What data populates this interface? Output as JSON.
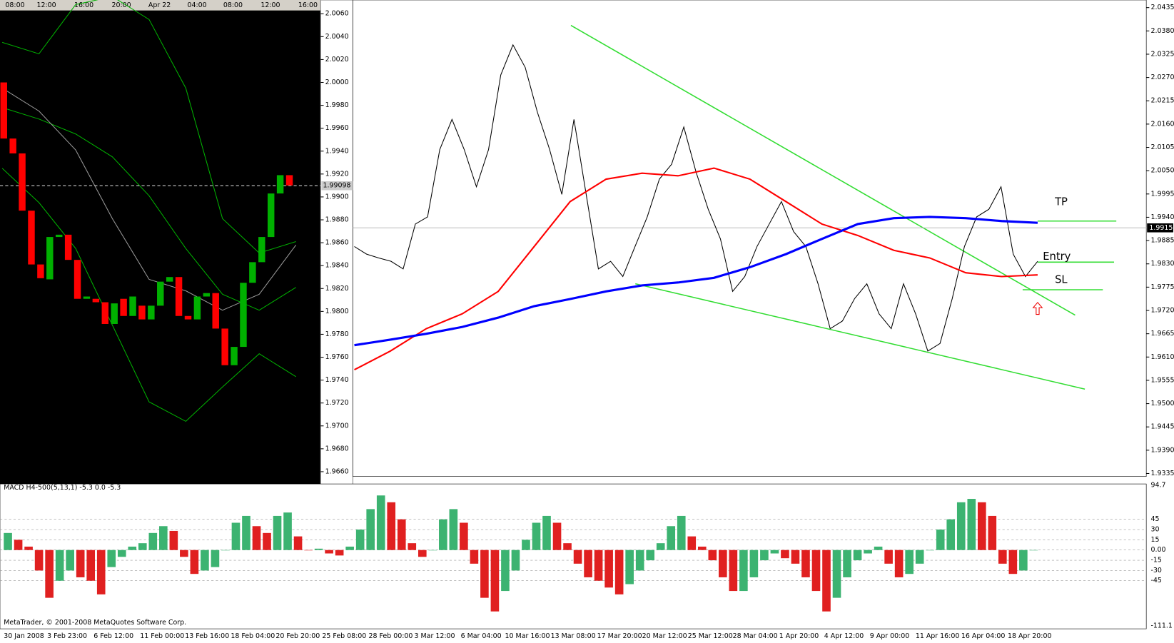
{
  "chart_data": [
    {
      "type": "candlestick",
      "time_labels": [
        "08:00",
        "12:00",
        "16:00",
        "20:00",
        "Apr 22",
        "04:00",
        "08:00",
        "12:00",
        "16:00"
      ],
      "open": [
        2.0,
        1.9951,
        1.9938,
        1.9888,
        1.9841,
        1.9828,
        1.9865,
        1.9867,
        1.9845,
        1.9811,
        1.9811,
        1.9808,
        1.9789,
        1.9811,
        1.9796,
        1.9805,
        1.9793,
        1.9805,
        1.9826,
        1.983,
        1.9796,
        1.9793,
        1.9813,
        1.9816,
        1.9785,
        1.9753,
        1.9769,
        1.9825,
        1.9843,
        1.9865,
        1.9903,
        1.9919
      ],
      "close": [
        1.9951,
        1.9938,
        1.9888,
        1.9841,
        1.9829,
        1.9865,
        1.9867,
        1.9845,
        1.9811,
        1.9813,
        1.9808,
        1.9789,
        1.9807,
        1.9796,
        1.9813,
        1.9793,
        1.9805,
        1.9826,
        1.983,
        1.9796,
        1.9793,
        1.9813,
        1.9816,
        1.9785,
        1.9753,
        1.9769,
        1.9825,
        1.9843,
        1.9865,
        1.9903,
        1.9919,
        1.991
      ],
      "up_color": "#00b000",
      "down_color": "#ff0000",
      "series": [
        {
          "color": "#00b000",
          "values": [
            2.0035,
            2.0025,
            2.0068,
            2.0075,
            2.0055,
            1.9995,
            1.9881,
            1.9851,
            1.9861
          ]
        },
        {
          "color": "#00b000",
          "values": [
            1.9978,
            1.9968,
            1.9955,
            1.9935,
            1.9901,
            1.9855,
            1.9815,
            1.9801,
            1.9821
          ]
        },
        {
          "color": "#00b000",
          "values": [
            1.9925,
            1.9895,
            1.9855,
            1.9788,
            1.9721,
            1.9704,
            1.9734,
            1.9763,
            1.9743
          ]
        },
        {
          "color": "#999999",
          "values": [
            1.9995,
            1.9975,
            1.9941,
            1.9881,
            1.9828,
            1.9818,
            1.9801,
            1.9815,
            1.9858
          ]
        }
      ],
      "current_price": {
        "value": 1.99098,
        "label": "1.99098"
      },
      "ylim": [
        1.9648,
        2.0072
      ],
      "yticks": [
        {
          "value": 2.006,
          "label": "2.0060"
        },
        {
          "value": 2.004,
          "label": "2.0040"
        },
        {
          "value": 2.002,
          "label": "2.0020"
        },
        {
          "value": 2.0,
          "label": "2.0000"
        },
        {
          "value": 1.998,
          "label": "1.9980"
        },
        {
          "value": 1.996,
          "label": "1.9960"
        },
        {
          "value": 1.994,
          "label": "1.9940"
        },
        {
          "value": 1.992,
          "label": "1.9920"
        },
        {
          "value": 1.99,
          "label": "1.9900"
        },
        {
          "value": 1.988,
          "label": "1.9880"
        },
        {
          "value": 1.986,
          "label": "1.9860"
        },
        {
          "value": 1.984,
          "label": "1.9840"
        },
        {
          "value": 1.982,
          "label": "1.9820"
        },
        {
          "value": 1.98,
          "label": "1.9800"
        },
        {
          "value": 1.978,
          "label": "1.9780"
        },
        {
          "value": 1.976,
          "label": "1.9760"
        },
        {
          "value": 1.974,
          "label": "1.9740"
        },
        {
          "value": 1.972,
          "label": "1.9720"
        },
        {
          "value": 1.97,
          "label": "1.9700"
        },
        {
          "value": 1.968,
          "label": "1.9680"
        },
        {
          "value": 1.966,
          "label": "1.9660"
        }
      ]
    },
    {
      "type": "line",
      "annotations": [
        "TP",
        "Entry",
        "SL"
      ],
      "date_labels": [
        "30 Jan 2008",
        "3 Feb 23:00",
        "6 Feb 12:00",
        "11 Feb 00:00",
        "13 Feb 16:00",
        "18 Feb 04:00",
        "20 Feb 20:00",
        "25 Feb 08:00",
        "28 Feb 00:00",
        "3 Mar 12:00",
        "6 Mar 04:00",
        "10 Mar 16:00",
        "13 Mar 08:00",
        "17 Mar 20:00",
        "20 Mar 12:00",
        "25 Mar 12:00",
        "28 Mar 04:00",
        "1 Apr 20:00",
        "4 Apr 12:00",
        "9 Apr 00:00",
        "11 Apr 16:00",
        "16 Apr 04:00",
        "18 Apr 20:00"
      ],
      "series": [
        {
          "color": "#000000",
          "values": [
            1.9871,
            1.9853,
            1.9844,
            1.9836,
            1.9818,
            1.9924,
            1.9941,
            2.01,
            2.0171,
            2.01,
            2.0012,
            2.01,
            2.0276,
            2.0347,
            2.0294,
            2.0188,
            2.01,
            1.9994,
            2.0171,
            1.9994,
            1.9818,
            1.9836,
            1.98,
            1.9871,
            1.9941,
            2.003,
            2.0065,
            2.0153,
            2.0047,
            1.9959,
            1.9889,
            1.9765,
            1.98,
            1.9871,
            1.9924,
            1.9977,
            1.9906,
            1.9871,
            1.9783,
            1.9677,
            1.9695,
            1.9748,
            1.9783,
            1.9712,
            1.9677,
            1.9783,
            1.9712,
            1.9624,
            1.9642,
            1.9748,
            1.9871,
            1.9941,
            1.9959,
            2.0012,
            1.9853,
            1.98,
            1.9836
          ]
        },
        {
          "color": "#ff0000",
          "values": [
            1.958,
            1.9624,
            1.9677,
            1.9712,
            1.9765,
            1.9871,
            1.9977,
            2.003,
            2.0044,
            2.0038,
            2.0056,
            2.003,
            1.9977,
            1.9924,
            1.9897,
            1.9862,
            1.9844,
            1.9809,
            1.98,
            1.9804
          ]
        },
        {
          "color": "#0000ff",
          "values": [
            1.9638,
            1.9651,
            1.9665,
            1.9681,
            1.9703,
            1.973,
            1.9747,
            1.9765,
            1.9779,
            1.9786,
            1.9797,
            1.9822,
            1.9853,
            1.9889,
            1.9924,
            1.9938,
            1.9941,
            1.9938,
            1.9931,
            1.9927
          ]
        }
      ],
      "current_price": {
        "value": 1.9915,
        "label": "1.9915"
      },
      "ylim": [
        1.9328,
        2.0453
      ],
      "yticks": [
        {
          "value": 2.0435,
          "label": "2.0435"
        },
        {
          "value": 2.038,
          "label": "2.0380"
        },
        {
          "value": 2.0325,
          "label": "2.0325"
        },
        {
          "value": 2.027,
          "label": "2.0270"
        },
        {
          "value": 2.0215,
          "label": "2.0215"
        },
        {
          "value": 2.016,
          "label": "2.0160"
        },
        {
          "value": 2.0105,
          "label": "2.0105"
        },
        {
          "value": 2.005,
          "label": "2.0050"
        },
        1.9995,
        {
          "value": 1.994,
          "label": "1.9940"
        },
        1.9885,
        {
          "value": 1.983,
          "label": "1.9830"
        },
        1.9775,
        {
          "value": 1.972,
          "label": "1.9720"
        },
        1.9665,
        {
          "value": 1.961,
          "label": "1.9610"
        },
        1.9555,
        {
          "value": 1.95,
          "label": "1.9500"
        },
        1.9445,
        {
          "value": 1.939,
          "label": "1.9390"
        },
        1.9335
      ]
    },
    {
      "type": "bar",
      "title": "MACD H4-500(5,13,1) -5.3 0.0 -5.3",
      "footer": "MetaTrader, © 2001-2008 MetaQuotes Software Corp.",
      "up_color": "#3cb371",
      "down_color": "#e02020",
      "values": [
        25,
        15,
        5,
        -30,
        -70,
        -45,
        -30,
        -40,
        -45,
        -65,
        -25,
        -10,
        5,
        10,
        25,
        35,
        28,
        -10,
        -35,
        -30,
        -25,
        0,
        40,
        50,
        35,
        25,
        50,
        55,
        20,
        0,
        2,
        -5,
        -8,
        5,
        30,
        60,
        80,
        70,
        45,
        10,
        -10,
        0,
        45,
        60,
        40,
        -20,
        -70,
        -90,
        -60,
        -30,
        15,
        40,
        50,
        40,
        10,
        -20,
        -40,
        -45,
        -55,
        -65,
        -50,
        -30,
        -15,
        10,
        35,
        50,
        20,
        5,
        -15,
        -40,
        -60,
        -60,
        -40,
        -15,
        -5,
        -12,
        -20,
        -40,
        -60,
        -90,
        -70,
        -40,
        -15,
        -5,
        5,
        -20,
        -40,
        -35,
        -20,
        0,
        30,
        45,
        70,
        75,
        70,
        50,
        -20,
        -35,
        -30,
        0
      ],
      "ylim": [
        -111.1,
        94.7
      ],
      "yticks": [
        94.7,
        45,
        30,
        15,
        {
          "value": 0,
          "label": "0.00"
        },
        -15,
        -30,
        -45,
        -111.1
      ]
    }
  ]
}
